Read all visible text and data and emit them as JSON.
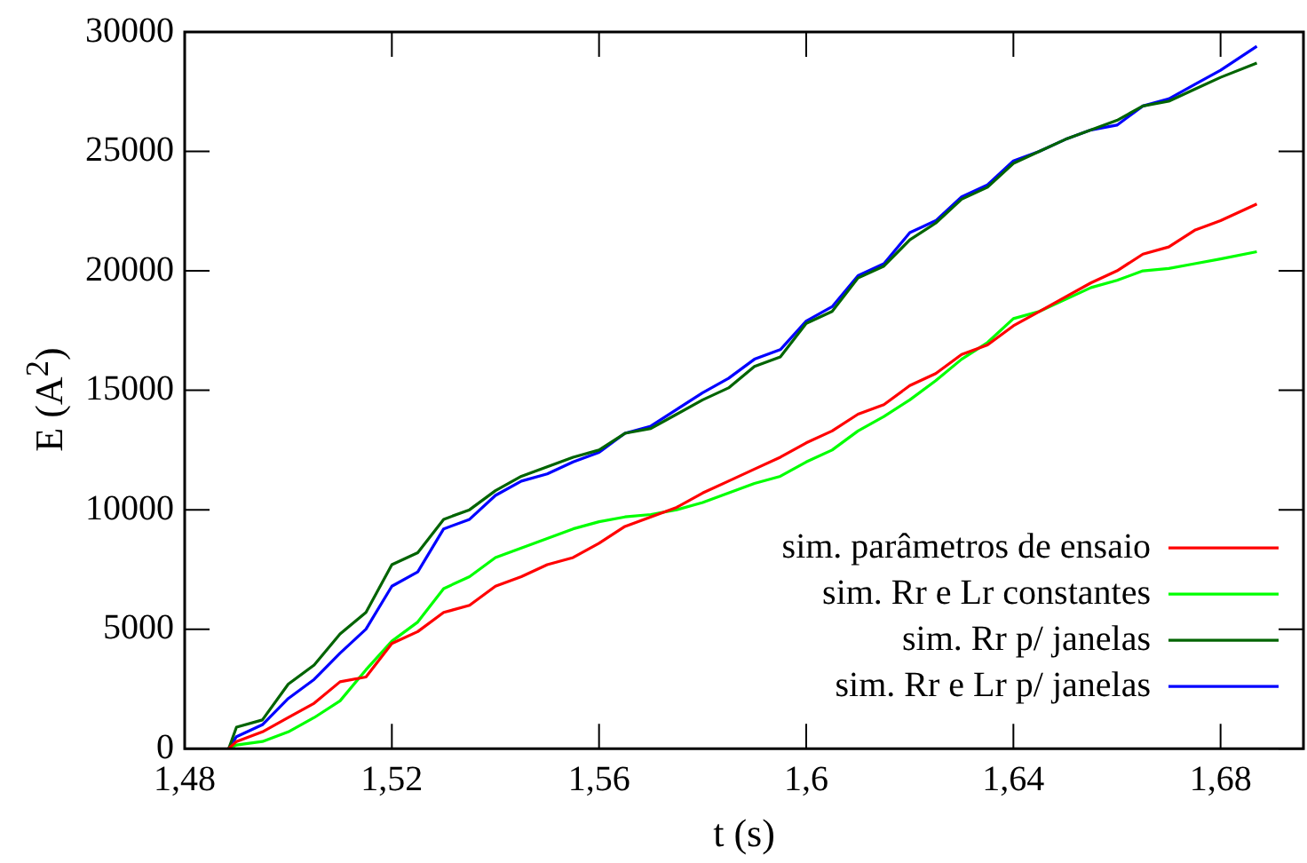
{
  "chart_data": {
    "type": "line",
    "xlabel": "t (s)",
    "ylabel": "E (A$^{2}$)",
    "x": [
      1.4885,
      1.49,
      1.495,
      1.5,
      1.505,
      1.51,
      1.515,
      1.52,
      1.525,
      1.53,
      1.535,
      1.54,
      1.545,
      1.55,
      1.555,
      1.56,
      1.565,
      1.57,
      1.575,
      1.58,
      1.585,
      1.59,
      1.595,
      1.6,
      1.605,
      1.61,
      1.615,
      1.62,
      1.625,
      1.63,
      1.635,
      1.64,
      1.645,
      1.65,
      1.655,
      1.66,
      1.665,
      1.67,
      1.675,
      1.68,
      1.687
    ],
    "xlim": [
      1.48,
      1.696
    ],
    "xticks": [
      {
        "value": 1.48,
        "label": "1,48"
      },
      {
        "value": 1.52,
        "label": "1,52"
      },
      {
        "value": 1.56,
        "label": "1,56"
      },
      {
        "value": 1.6,
        "label": "1,6"
      },
      {
        "value": 1.64,
        "label": "1,64"
      },
      {
        "value": 1.68,
        "label": "1,68"
      }
    ],
    "ylim": [
      0,
      30000
    ],
    "yticks": [
      0,
      5000,
      10000,
      15000,
      20000,
      25000,
      30000
    ],
    "grid": false,
    "legend": "bottom right",
    "marker": "none",
    "line_style": "solid",
    "series": [
      {
        "name": "sim. parâmetros de ensaio",
        "color": "#ff0000",
        "values": [
          0,
          300,
          700,
          1300,
          1900,
          2800,
          3000,
          4400,
          4900,
          5700,
          6000,
          6800,
          7200,
          7700,
          8000,
          8600,
          9300,
          9700,
          10100,
          10700,
          11200,
          11700,
          12200,
          12800,
          13300,
          14000,
          14400,
          15200,
          15700,
          16500,
          16900,
          17700,
          18300,
          18900,
          19500,
          20000,
          20700,
          21000,
          21700,
          22100,
          22800
        ]
      },
      {
        "name": "sim. Rr e Lr constantes",
        "color": "#00ff00",
        "values": [
          0,
          150,
          300,
          700,
          1300,
          2000,
          3300,
          4500,
          5300,
          6700,
          7200,
          8000,
          8400,
          8800,
          9200,
          9500,
          9700,
          9800,
          10000,
          10300,
          10700,
          11100,
          11400,
          12000,
          12500,
          13300,
          13900,
          14600,
          15400,
          16300,
          17000,
          18000,
          18300,
          18800,
          19300,
          19600,
          20000,
          20100,
          20300,
          20500,
          20800
        ]
      },
      {
        "name": "sim. Rr p/ janelas",
        "color": "#006400",
        "values": [
          0,
          900,
          1200,
          2700,
          3500,
          4800,
          5700,
          7700,
          8200,
          9600,
          10000,
          10800,
          11400,
          11800,
          12200,
          12500,
          13200,
          13400,
          14000,
          14600,
          15100,
          16000,
          16400,
          17800,
          18300,
          19700,
          20200,
          21300,
          22000,
          23000,
          23500,
          24500,
          25000,
          25500,
          25900,
          26300,
          26900,
          27100,
          27600,
          28100,
          28700
        ]
      },
      {
        "name": "sim. Rr e Lr p/ janelas",
        "color": "#0000ff",
        "values": [
          0,
          500,
          1000,
          2100,
          2900,
          4000,
          5000,
          6800,
          7400,
          9200,
          9600,
          10600,
          11200,
          11500,
          12000,
          12400,
          13200,
          13500,
          14200,
          14900,
          15500,
          16300,
          16700,
          17900,
          18500,
          19800,
          20300,
          21600,
          22100,
          23100,
          23600,
          24600,
          25000,
          25500,
          25900,
          26100,
          26900,
          27200,
          27800,
          28400,
          29400
        ]
      }
    ]
  }
}
